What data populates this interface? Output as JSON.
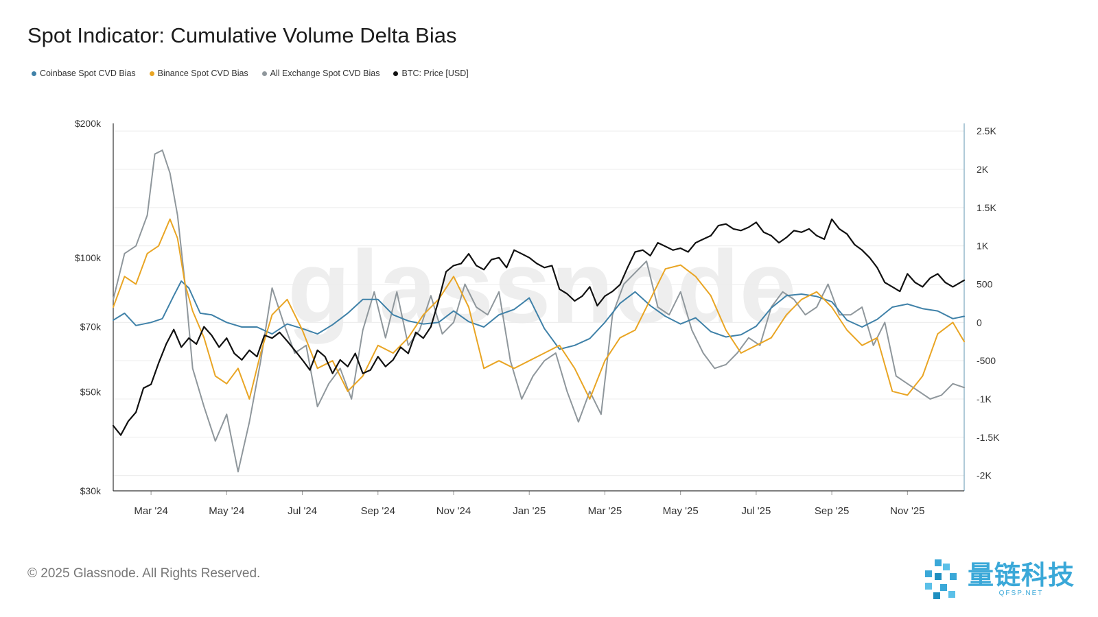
{
  "title": "Spot Indicator: Cumulative Volume Delta Bias",
  "footer": "© 2025 Glassnode. All Rights Reserved.",
  "watermark": "glassnode",
  "brand": {
    "name_cn": "量链科技",
    "url": "QFSP.NET",
    "color": "#3aa8d8"
  },
  "legend": [
    {
      "label": "Coinbase Spot CVD Bias",
      "color": "#3f81a8"
    },
    {
      "label": "Binance Spot CVD Bias",
      "color": "#e9a524"
    },
    {
      "label": "All Exchange Spot CVD Bias",
      "color": "#8f979c"
    },
    {
      "label": "BTC: Price [USD]",
      "color": "#111111"
    }
  ],
  "chart_data": {
    "type": "line",
    "title": "Spot Indicator: Cumulative Volume Delta Bias",
    "x_ticks": [
      "Mar '24",
      "May '24",
      "Jul '24",
      "Sep '24",
      "Nov '24",
      "Jan '25",
      "Mar '25",
      "May '25",
      "Jul '25",
      "Sep '25",
      "Nov '25"
    ],
    "x_range_months": [
      0,
      22.5
    ],
    "x_tick_positions_months": [
      1,
      3,
      5,
      7,
      9,
      11,
      13,
      15,
      17,
      19,
      21
    ],
    "left_axis": {
      "scale": "log",
      "range": [
        30000,
        200000
      ],
      "ticks": [
        200000,
        100000,
        70000,
        50000,
        30000
      ],
      "tick_labels": [
        "$200k",
        "$100k",
        "$70k",
        "$50k",
        "$30k"
      ]
    },
    "right_axis": {
      "scale": "linear",
      "range": [
        -2200,
        2600
      ],
      "ticks": [
        2500,
        2000,
        1500,
        1000,
        500,
        0,
        -500,
        -1000,
        -1500,
        -2000
      ],
      "tick_labels": [
        "2.5K",
        "2K",
        "1.5K",
        "1K",
        "500",
        "0",
        "-500",
        "-1K",
        "-1.5K",
        "-2K"
      ]
    },
    "series": [
      {
        "name": "Coinbase Spot CVD Bias",
        "axis": "right",
        "color": "#3f81a8",
        "x": [
          0,
          0.3,
          0.6,
          1,
          1.3,
          1.6,
          1.8,
          2,
          2.3,
          2.6,
          3,
          3.4,
          3.8,
          4.2,
          4.6,
          5,
          5.4,
          5.8,
          6.2,
          6.6,
          7,
          7.4,
          7.8,
          8.2,
          8.6,
          9,
          9.4,
          9.8,
          10.2,
          10.6,
          11,
          11.4,
          11.8,
          12.2,
          12.6,
          13,
          13.4,
          13.8,
          14.2,
          14.6,
          15,
          15.4,
          15.8,
          16.2,
          16.6,
          17,
          17.4,
          17.8,
          18.2,
          18.6,
          19,
          19.4,
          19.8,
          20.2,
          20.6,
          21,
          21.4,
          21.8,
          22.2,
          22.5
        ],
        "y": [
          30,
          120,
          -40,
          0,
          50,
          350,
          540,
          450,
          120,
          100,
          0,
          -60,
          -60,
          -150,
          -20,
          -80,
          -150,
          -30,
          120,
          300,
          300,
          100,
          20,
          -20,
          0,
          150,
          10,
          -60,
          100,
          170,
          320,
          -80,
          -350,
          -300,
          -210,
          0,
          250,
          400,
          220,
          80,
          -20,
          60,
          -120,
          -190,
          -160,
          -50,
          190,
          350,
          370,
          340,
          270,
          30,
          -60,
          40,
          200,
          240,
          180,
          150,
          50,
          80
        ]
      },
      {
        "name": "Binance Spot CVD Bias",
        "axis": "right",
        "color": "#e9a524",
        "x": [
          0,
          0.3,
          0.6,
          0.9,
          1.2,
          1.5,
          1.7,
          1.9,
          2.1,
          2.4,
          2.7,
          3,
          3.3,
          3.6,
          3.9,
          4.2,
          4.6,
          5,
          5.4,
          5.8,
          6.2,
          6.6,
          7,
          7.4,
          7.8,
          8.2,
          8.6,
          9,
          9.4,
          9.8,
          10.2,
          10.6,
          11,
          11.4,
          11.8,
          12.2,
          12.6,
          13,
          13.4,
          13.8,
          14.2,
          14.6,
          15,
          15.4,
          15.8,
          16.2,
          16.6,
          17,
          17.4,
          17.8,
          18.2,
          18.6,
          19,
          19.4,
          19.8,
          20.2,
          20.6,
          21,
          21.4,
          21.8,
          22.2,
          22.5
        ],
        "y": [
          200,
          600,
          500,
          900,
          1000,
          1350,
          1100,
          500,
          150,
          -200,
          -700,
          -800,
          -600,
          -1000,
          -400,
          100,
          300,
          -100,
          -600,
          -500,
          -900,
          -700,
          -300,
          -400,
          -200,
          100,
          300,
          600,
          200,
          -600,
          -500,
          -600,
          -500,
          -400,
          -300,
          -600,
          -1000,
          -500,
          -200,
          -100,
          300,
          700,
          750,
          600,
          350,
          -100,
          -400,
          -300,
          -200,
          100,
          300,
          400,
          200,
          -100,
          -300,
          -200,
          -900,
          -950,
          -700,
          -150,
          0,
          -250
        ]
      },
      {
        "name": "All Exchange Spot CVD Bias",
        "axis": "right",
        "color": "#8f979c",
        "x": [
          0,
          0.3,
          0.6,
          0.9,
          1.1,
          1.3,
          1.5,
          1.7,
          1.9,
          2.1,
          2.4,
          2.7,
          3,
          3.3,
          3.6,
          3.9,
          4.2,
          4.5,
          4.8,
          5.1,
          5.4,
          5.7,
          6,
          6.3,
          6.6,
          6.9,
          7.2,
          7.5,
          7.8,
          8.1,
          8.4,
          8.7,
          9,
          9.3,
          9.6,
          9.9,
          10.2,
          10.5,
          10.8,
          11.1,
          11.4,
          11.7,
          12,
          12.3,
          12.6,
          12.9,
          13.2,
          13.5,
          13.8,
          14.1,
          14.4,
          14.7,
          15,
          15.3,
          15.6,
          15.9,
          16.2,
          16.5,
          16.8,
          17.1,
          17.4,
          17.7,
          18,
          18.3,
          18.6,
          18.9,
          19.2,
          19.5,
          19.8,
          20.1,
          20.4,
          20.7,
          21,
          21.3,
          21.6,
          21.9,
          22.2,
          22.5
        ],
        "y": [
          300,
          900,
          1000,
          1400,
          2200,
          2250,
          1950,
          1400,
          500,
          -600,
          -1100,
          -1550,
          -1200,
          -1950,
          -1300,
          -500,
          450,
          0,
          -400,
          -300,
          -1100,
          -800,
          -600,
          -1000,
          -100,
          400,
          -200,
          400,
          -300,
          -100,
          350,
          -150,
          0,
          500,
          200,
          100,
          400,
          -500,
          -1000,
          -700,
          -500,
          -400,
          -900,
          -1300,
          -900,
          -1200,
          100,
          500,
          650,
          800,
          200,
          100,
          400,
          -100,
          -400,
          -600,
          -550,
          -400,
          -200,
          -300,
          200,
          400,
          300,
          100,
          200,
          500,
          100,
          100,
          200,
          -300,
          0,
          -700,
          -800,
          -900,
          -1000,
          -950,
          -800,
          -850
        ]
      },
      {
        "name": "BTC: Price [USD]",
        "axis": "left",
        "color": "#111111",
        "x": [
          0,
          0.2,
          0.4,
          0.6,
          0.8,
          1,
          1.2,
          1.4,
          1.6,
          1.8,
          2,
          2.2,
          2.4,
          2.6,
          2.8,
          3,
          3.2,
          3.4,
          3.6,
          3.8,
          4,
          4.2,
          4.4,
          4.6,
          4.8,
          5,
          5.2,
          5.4,
          5.6,
          5.8,
          6,
          6.2,
          6.4,
          6.6,
          6.8,
          7,
          7.2,
          7.4,
          7.6,
          7.8,
          8,
          8.2,
          8.4,
          8.6,
          8.8,
          9,
          9.2,
          9.4,
          9.6,
          9.8,
          10,
          10.2,
          10.4,
          10.6,
          10.8,
          11,
          11.2,
          11.4,
          11.6,
          11.8,
          12,
          12.2,
          12.4,
          12.6,
          12.8,
          13,
          13.2,
          13.4,
          13.6,
          13.8,
          14,
          14.2,
          14.4,
          14.6,
          14.8,
          15,
          15.2,
          15.4,
          15.6,
          15.8,
          16,
          16.2,
          16.4,
          16.6,
          16.8,
          17,
          17.2,
          17.4,
          17.6,
          17.8,
          18,
          18.2,
          18.4,
          18.6,
          18.8,
          19,
          19.2,
          19.4,
          19.6,
          19.8,
          20,
          20.2,
          20.4,
          20.6,
          20.8,
          21,
          21.2,
          21.4,
          21.6,
          21.8,
          22,
          22.2,
          22.5
        ],
        "y": [
          42000,
          40000,
          43000,
          45000,
          51000,
          52000,
          58000,
          64000,
          69000,
          63000,
          66000,
          64000,
          70000,
          67000,
          63000,
          66000,
          61000,
          59000,
          62000,
          60000,
          67000,
          66000,
          68000,
          65000,
          62000,
          59000,
          56000,
          62000,
          60000,
          55000,
          59000,
          57000,
          61000,
          55000,
          56000,
          60000,
          57000,
          59000,
          63000,
          61000,
          68000,
          66000,
          70000,
          80000,
          93000,
          96000,
          97000,
          102000,
          96000,
          94000,
          99000,
          100000,
          95000,
          104000,
          102000,
          100000,
          97000,
          95000,
          96000,
          85000,
          83000,
          80000,
          82000,
          86000,
          78000,
          82000,
          84000,
          87000,
          95000,
          103000,
          104000,
          101000,
          108000,
          106000,
          104000,
          105000,
          103000,
          108000,
          110000,
          112000,
          118000,
          119000,
          116000,
          115000,
          117000,
          120000,
          114000,
          112000,
          108000,
          111000,
          115000,
          114000,
          116000,
          112000,
          110000,
          122000,
          116000,
          113000,
          107000,
          104000,
          100000,
          95000,
          88000,
          86000,
          84000,
          92000,
          88000,
          86000,
          90000,
          92000,
          88000,
          86000,
          89000
        ]
      }
    ]
  }
}
